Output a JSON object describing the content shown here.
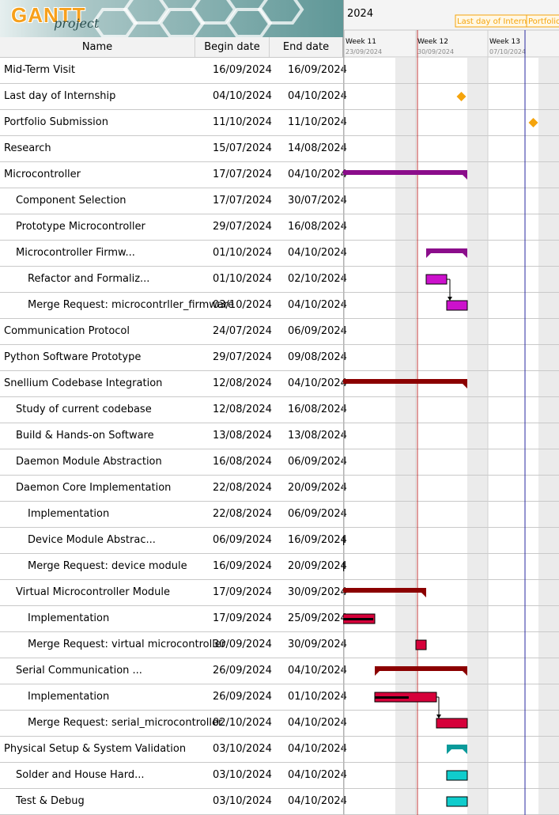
{
  "app": {
    "brand_top": "GANTT",
    "brand_bottom": "project"
  },
  "columns": {
    "name": "Name",
    "begin": "Begin date",
    "end": "End date"
  },
  "timeline": {
    "year": "2024",
    "weeks": [
      {
        "label": "Week 11",
        "date": "23/09/2024"
      },
      {
        "label": "Week 12",
        "date": "30/09/2024"
      },
      {
        "label": "Week 13",
        "date": "07/10/2024"
      }
    ],
    "milestone_flags": [
      "Last day of Internship",
      "Portfolio Submission"
    ]
  },
  "tasks": [
    {
      "name": "Mid-Term Visit",
      "begin": "16/09/2024",
      "end": "16/09/2024",
      "indent": 0
    },
    {
      "name": "Last day of Internship",
      "begin": "04/10/2024",
      "end": "04/10/2024",
      "indent": 0
    },
    {
      "name": "Portfolio Submission",
      "begin": "11/10/2024",
      "end": "11/10/2024",
      "indent": 0
    },
    {
      "name": "Research",
      "begin": "15/07/2024",
      "end": "14/08/2024",
      "indent": 0
    },
    {
      "name": "Microcontroller",
      "begin": "17/07/2024",
      "end": "04/10/2024",
      "indent": 0
    },
    {
      "name": "Component Selection",
      "begin": "17/07/2024",
      "end": "30/07/2024",
      "indent": 1
    },
    {
      "name": "Prototype Microcontroller",
      "begin": "29/07/2024",
      "end": "16/08/2024",
      "indent": 1
    },
    {
      "name": "Microcontroller Firmw...",
      "begin": "01/10/2024",
      "end": "04/10/2024",
      "indent": 1
    },
    {
      "name": "Refactor and Formaliz...",
      "begin": "01/10/2024",
      "end": "02/10/2024",
      "indent": 2
    },
    {
      "name": "Merge Request: microcontrller_firmware",
      "begin": "03/10/2024",
      "end": "04/10/2024",
      "indent": 2
    },
    {
      "name": "Communication Protocol",
      "begin": "24/07/2024",
      "end": "06/09/2024",
      "indent": 0
    },
    {
      "name": "Python Software Prototype",
      "begin": "29/07/2024",
      "end": "09/08/2024",
      "indent": 0
    },
    {
      "name": "Snellium Codebase Integration",
      "begin": "12/08/2024",
      "end": "04/10/2024",
      "indent": 0
    },
    {
      "name": "Study of current codebase",
      "begin": "12/08/2024",
      "end": "16/08/2024",
      "indent": 1
    },
    {
      "name": "Build & Hands-on Software",
      "begin": "13/08/2024",
      "end": "13/08/2024",
      "indent": 1
    },
    {
      "name": "Daemon Module Abstraction",
      "begin": "16/08/2024",
      "end": "06/09/2024",
      "indent": 1
    },
    {
      "name": "Daemon Core Implementation",
      "begin": "22/08/2024",
      "end": "20/09/2024",
      "indent": 1
    },
    {
      "name": "Implementation",
      "begin": "22/08/2024",
      "end": "06/09/2024",
      "indent": 2
    },
    {
      "name": "Device Module Abstrac...",
      "begin": "06/09/2024",
      "end": "16/09/2024",
      "indent": 2
    },
    {
      "name": "Merge Request: device module",
      "begin": "16/09/2024",
      "end": "20/09/2024",
      "indent": 2
    },
    {
      "name": "Virtual Microcontroller Module",
      "begin": "17/09/2024",
      "end": "30/09/2024",
      "indent": 1
    },
    {
      "name": "Implementation",
      "begin": "17/09/2024",
      "end": "25/09/2024",
      "indent": 2
    },
    {
      "name": "Merge Request: virtual microcontroller",
      "begin": "30/09/2024",
      "end": "30/09/2024",
      "indent": 2
    },
    {
      "name": "Serial Communication ...",
      "begin": "26/09/2024",
      "end": "04/10/2024",
      "indent": 1
    },
    {
      "name": "Implementation",
      "begin": "26/09/2024",
      "end": "01/10/2024",
      "indent": 2
    },
    {
      "name": "Merge Request: serial_microcontroller",
      "begin": "02/10/2024",
      "end": "04/10/2024",
      "indent": 2
    },
    {
      "name": "Physical Setup & System Validation",
      "begin": "03/10/2024",
      "end": "04/10/2024",
      "indent": 0
    },
    {
      "name": "Solder and House Hard...",
      "begin": "03/10/2024",
      "end": "04/10/2024",
      "indent": 1
    },
    {
      "name": "Test & Debug",
      "begin": "03/10/2024",
      "end": "04/10/2024",
      "indent": 1
    }
  ],
  "colors": {
    "purple": "#8b0d8b",
    "magenta": "#cc11cc",
    "darkred": "#8b0000",
    "crimson": "#d6003a",
    "teal": "#0a9a9a",
    "cyan": "#10cccc",
    "milestone": "#f5a40c",
    "today_line": "#c23a3a",
    "deadline_line": "#2a2aa0",
    "weekend": "#ebebeb"
  }
}
